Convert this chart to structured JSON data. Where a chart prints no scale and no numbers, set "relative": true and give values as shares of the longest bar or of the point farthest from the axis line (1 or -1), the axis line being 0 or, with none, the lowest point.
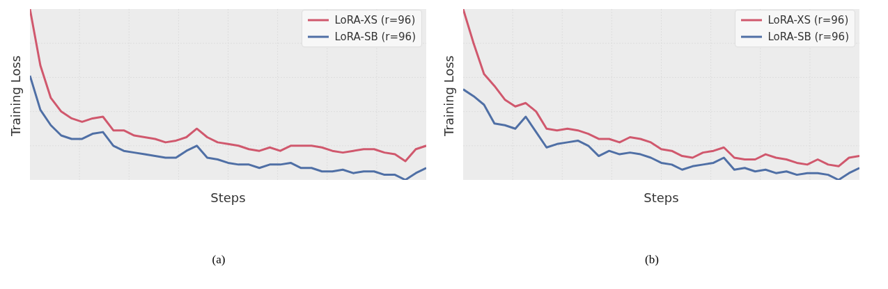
{
  "chart_data": [
    {
      "type": "line",
      "xlabel": "Steps",
      "ylabel": "Training Loss",
      "relative": true,
      "grid": true,
      "legend": "top right",
      "tick_labels": false,
      "annotations": [
        "(a)"
      ],
      "categories": [
        null,
        null,
        null,
        null,
        null,
        null,
        null,
        null,
        null,
        null,
        null,
        null,
        null,
        null,
        null,
        null,
        null,
        null,
        null,
        null,
        null,
        null,
        null,
        null,
        null,
        null,
        null,
        null,
        null,
        null,
        null,
        null,
        null,
        null,
        null,
        null,
        null,
        null,
        null
      ],
      "series": [
        {
          "name": "LoRA-XS (r=96)",
          "color": "#d0586d",
          "values": [
            1.0,
            0.67,
            0.48,
            0.4,
            0.36,
            0.34,
            0.36,
            0.37,
            0.29,
            0.29,
            0.26,
            0.25,
            0.24,
            0.22,
            0.23,
            0.25,
            0.3,
            0.25,
            0.22,
            0.21,
            0.2,
            0.18,
            0.17,
            0.19,
            0.17,
            0.2,
            0.2,
            0.2,
            0.19,
            0.17,
            0.16,
            0.17,
            0.18,
            0.18,
            0.16,
            0.15,
            0.11,
            0.18,
            0.2
          ]
        },
        {
          "name": "LoRA-SB (r=96)",
          "color": "#4f6fa5",
          "values": [
            0.61,
            0.41,
            0.32,
            0.26,
            0.24,
            0.24,
            0.27,
            0.28,
            0.2,
            0.17,
            0.16,
            0.15,
            0.14,
            0.13,
            0.13,
            0.17,
            0.2,
            0.13,
            0.12,
            0.1,
            0.09,
            0.09,
            0.07,
            0.09,
            0.09,
            0.1,
            0.07,
            0.07,
            0.05,
            0.05,
            0.06,
            0.04,
            0.05,
            0.05,
            0.03,
            0.03,
            0.0,
            0.04,
            0.07
          ]
        }
      ]
    },
    {
      "type": "line",
      "xlabel": "Steps",
      "ylabel": "Training Loss",
      "relative": true,
      "grid": true,
      "legend": "top right",
      "tick_labels": false,
      "annotations": [
        "(b)"
      ],
      "categories": [
        null,
        null,
        null,
        null,
        null,
        null,
        null,
        null,
        null,
        null,
        null,
        null,
        null,
        null,
        null,
        null,
        null,
        null,
        null,
        null,
        null,
        null,
        null,
        null,
        null,
        null,
        null,
        null,
        null,
        null,
        null,
        null,
        null,
        null,
        null,
        null,
        null,
        null,
        null
      ],
      "series": [
        {
          "name": "LoRA-XS (r=96)",
          "color": "#d0586d",
          "values": [
            1.0,
            0.8,
            0.62,
            0.55,
            0.47,
            0.43,
            0.45,
            0.4,
            0.3,
            0.29,
            0.3,
            0.29,
            0.27,
            0.24,
            0.24,
            0.22,
            0.25,
            0.24,
            0.22,
            0.18,
            0.17,
            0.14,
            0.13,
            0.16,
            0.17,
            0.19,
            0.13,
            0.12,
            0.12,
            0.15,
            0.13,
            0.12,
            0.1,
            0.09,
            0.12,
            0.09,
            0.08,
            0.13,
            0.14
          ]
        },
        {
          "name": "LoRA-SB (r=96)",
          "color": "#4f6fa5",
          "values": [
            0.53,
            0.49,
            0.44,
            0.33,
            0.32,
            0.3,
            0.37,
            0.28,
            0.19,
            0.21,
            0.22,
            0.23,
            0.2,
            0.14,
            0.17,
            0.15,
            0.16,
            0.15,
            0.13,
            0.1,
            0.09,
            0.06,
            0.08,
            0.09,
            0.1,
            0.13,
            0.06,
            0.07,
            0.05,
            0.06,
            0.04,
            0.05,
            0.03,
            0.04,
            0.04,
            0.03,
            0.0,
            0.04,
            0.07
          ]
        }
      ]
    }
  ]
}
